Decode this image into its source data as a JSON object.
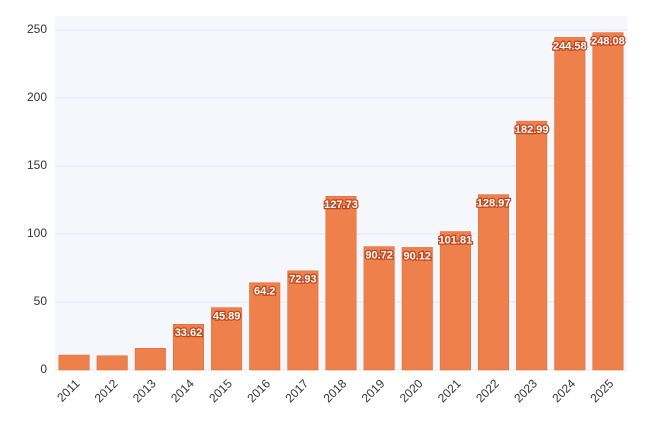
{
  "chart_data": {
    "type": "bar",
    "categories": [
      "2011",
      "2012",
      "2013",
      "2014",
      "2015",
      "2016",
      "2017",
      "2018",
      "2019",
      "2020",
      "2021",
      "2022",
      "2023",
      "2024",
      "2025"
    ],
    "values": [
      11,
      10.5,
      16,
      33.62,
      45.89,
      64.2,
      72.93,
      127.73,
      90.72,
      90.12,
      101.81,
      128.97,
      182.99,
      244.58,
      248.08
    ],
    "value_labels": [
      null,
      null,
      null,
      "33.62",
      "45.89",
      "64.2",
      "72.93",
      "127.73",
      "90.72",
      "90.12",
      "101.81",
      "128.97",
      "182.99",
      "244.58",
      "248.08"
    ],
    "color": "#ee804b",
    "ylim": [
      0,
      260
    ],
    "yticks": [
      0,
      50,
      100,
      150,
      200,
      250
    ],
    "grid": true
  }
}
